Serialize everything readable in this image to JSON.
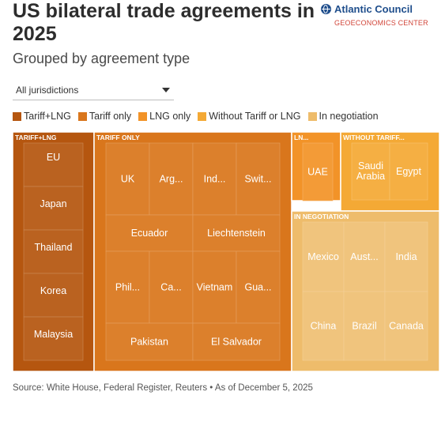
{
  "header": {
    "title": "US bilateral trade agreements in 2025",
    "subtitle": "Grouped by agreement type",
    "logo_main": "Atlantic Council",
    "logo_sub": "GEOECONOMICS CENTER"
  },
  "filter": {
    "selected": "All jurisdictions"
  },
  "legend": [
    {
      "label": "Tariff+LNG",
      "color": "#b5560f"
    },
    {
      "label": "Tariff only",
      "color": "#d9761c"
    },
    {
      "label": "LNG only",
      "color": "#f29328"
    },
    {
      "label": "Without Tariff or LNG",
      "color": "#f4a935"
    },
    {
      "label": "In negotiation",
      "color": "#eebc6b"
    }
  ],
  "chart_data": {
    "type": "treemap",
    "groups": [
      {
        "name": "TARIFF+LNG",
        "category": "Tariff+LNG",
        "color": "#b5560f",
        "items": [
          "EU",
          "Japan",
          "Thailand",
          "Korea",
          "Malaysia"
        ]
      },
      {
        "name": "TARIFF ONLY",
        "category": "Tariff only",
        "color": "#d9761c",
        "items": [
          "UK",
          "Arg...",
          "Ind...",
          "Swit...",
          "Ecuador",
          "Liechtenstein",
          "Phil...",
          "Ca...",
          "Vietnam",
          "Gua...",
          "Pakistan",
          "El Salvador"
        ]
      },
      {
        "name": "LN...",
        "category": "LNG only",
        "color": "#f29328",
        "items": [
          "UAE"
        ]
      },
      {
        "name": "WITHOUT TARIFF...",
        "category": "Without Tariff or LNG",
        "color": "#f4a935",
        "items": [
          "Saudi Arabia",
          "Egypt"
        ]
      },
      {
        "name": "IN NEGOTIATION",
        "category": "In negotiation",
        "color": "#eebc6b",
        "items": [
          "Mexico",
          "Aust...",
          "India",
          "China",
          "Brazil",
          "Canada"
        ]
      }
    ]
  },
  "footer": {
    "source": "Source: White House, Federal Register, Reuters • As of December 5, 2025"
  }
}
